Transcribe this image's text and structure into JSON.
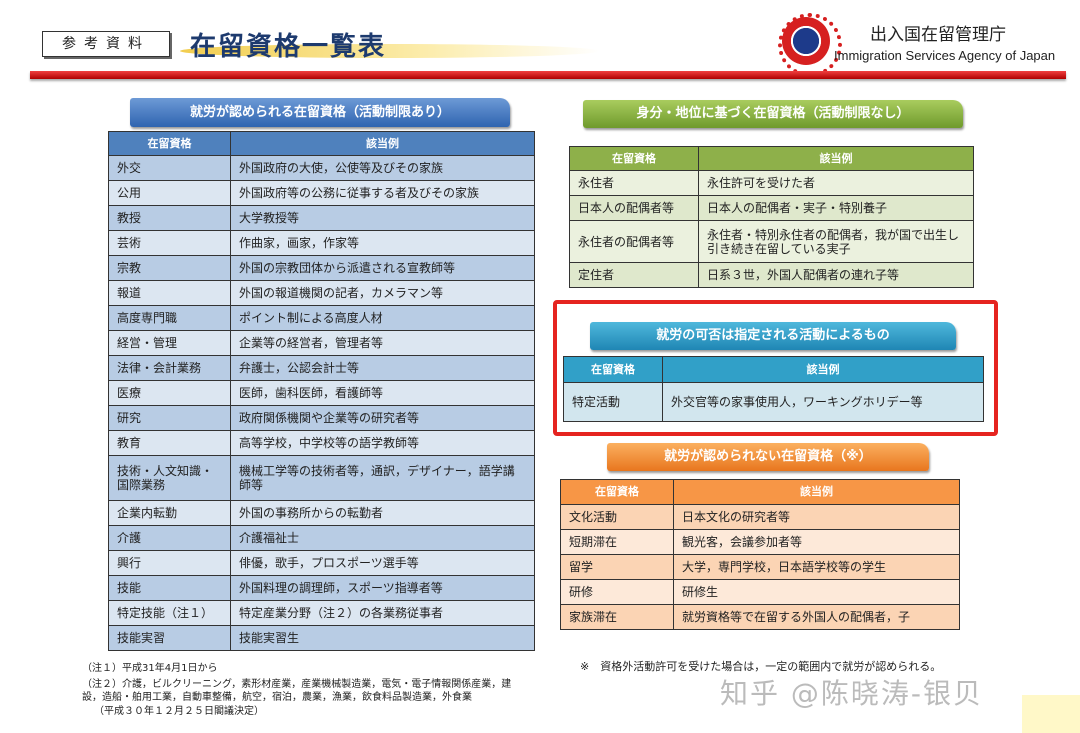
{
  "header": {
    "ref_label": "参考資料",
    "title": "在留資格一覧表",
    "agency_jp": "出入国在留管理庁",
    "agency_en": "Immigration Services Agency of Japan",
    "logo": "immigration-agency-emblem"
  },
  "colors": {
    "blue": "#4f81bd",
    "green": "#9bbb59",
    "teal": "#31a0c8",
    "orange": "#f79646",
    "highlight": "#e52420"
  },
  "work_allowed": {
    "title": "就労が認められる在留資格（活動制限あり）",
    "headers": [
      "在留資格",
      "該当例"
    ],
    "rows": [
      [
        "外交",
        "外国政府の大使，公使等及びその家族"
      ],
      [
        "公用",
        "外国政府等の公務に従事する者及びその家族"
      ],
      [
        "教授",
        "大学教授等"
      ],
      [
        "芸術",
        "作曲家，画家，作家等"
      ],
      [
        "宗教",
        "外国の宗教団体から派遣される宣教師等"
      ],
      [
        "報道",
        "外国の報道機関の記者，カメラマン等"
      ],
      [
        "高度専門職",
        "ポイント制による高度人材"
      ],
      [
        "経営・管理",
        "企業等の経営者，管理者等"
      ],
      [
        "法律・会計業務",
        "弁護士，公認会計士等"
      ],
      [
        "医療",
        "医師，歯科医師，看護師等"
      ],
      [
        "研究",
        "政府関係機関や企業等の研究者等"
      ],
      [
        "教育",
        "高等学校，中学校等の語学教師等"
      ],
      [
        "技術・人文知識・国際業務",
        "機械工学等の技術者等，通訳，デザイナー，語学講師等"
      ],
      [
        "企業内転勤",
        "外国の事務所からの転勤者"
      ],
      [
        "介護",
        "介護福祉士"
      ],
      [
        "興行",
        "俳優，歌手，プロスポーツ選手等"
      ],
      [
        "技能",
        "外国料理の調理師，スポーツ指導者等"
      ],
      [
        "特定技能（注１）",
        "特定産業分野（注２）の各業務従事者"
      ],
      [
        "技能実習",
        "技能実習生"
      ]
    ]
  },
  "status_based": {
    "title": "身分・地位に基づく在留資格（活動制限なし）",
    "headers": [
      "在留資格",
      "該当例"
    ],
    "rows": [
      [
        "永住者",
        "永住許可を受けた者"
      ],
      [
        "日本人の配偶者等",
        "日本人の配偶者・実子・特別養子"
      ],
      [
        "永住者の配偶者等",
        "永住者・特別永住者の配偶者，我が国で出生し引き続き在留している実子"
      ],
      [
        "定住者",
        "日系３世，外国人配偶者の連れ子等"
      ]
    ]
  },
  "designated": {
    "title": "就労の可否は指定される活動によるもの",
    "headers": [
      "在留資格",
      "該当例"
    ],
    "rows": [
      [
        "特定活動",
        "外交官等の家事使用人，ワーキングホリデー等"
      ]
    ]
  },
  "not_allowed": {
    "title": "就労が認められない在留資格（※）",
    "headers": [
      "在留資格",
      "該当例"
    ],
    "rows": [
      [
        "文化活動",
        "日本文化の研究者等"
      ],
      [
        "短期滞在",
        "観光客，会議参加者等"
      ],
      [
        "留学",
        "大学，専門学校，日本語学校等の学生"
      ],
      [
        "研修",
        "研修生"
      ],
      [
        "家族滞在",
        "就労資格等で在留する外国人の配偶者，子"
      ]
    ]
  },
  "notes": {
    "note1": "（注１）平成31年4月1日から",
    "note2": "（注２）介護，ビルクリーニング，素形材産業，産業機械製造業，電気・電子情報関係産業，建設，造船・舶用工業，自動車整備，航空，宿泊，農業，漁業，飲食料品製造業，外食業",
    "note2_date": "（平成３０年１２月２５日閣議決定）",
    "asterisk": "※　資格外活動許可を受けた場合は，一定の範囲内で就労が認められる。"
  },
  "watermark": "知乎 @陈晓涛-银贝"
}
